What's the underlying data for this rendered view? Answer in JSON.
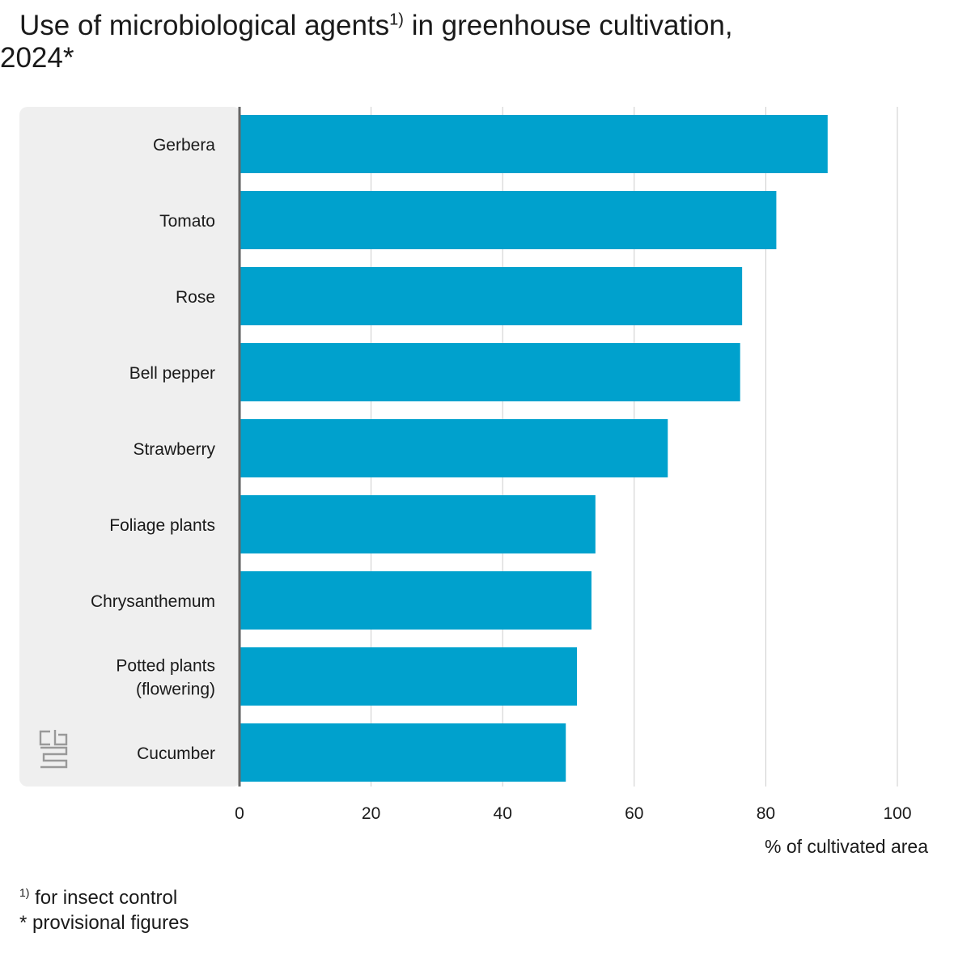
{
  "title": {
    "text_before_sup": "Use of microbiological agents",
    "sup": "1)",
    "text_after_sup": " in greenhouse cultivation,",
    "line2": "2024*"
  },
  "footnotes": {
    "note1_marker": "1)",
    "note1_text": " for insect control",
    "note2_text": "* provisional figures"
  },
  "logo": {
    "name": "cbs-logo"
  },
  "colors": {
    "bar": "#00a1cd",
    "panel": "#efefef",
    "grid": "#cccccc",
    "axis": "#666666"
  },
  "chart_data": {
    "type": "bar",
    "orientation": "horizontal",
    "categories": [
      "Gerbera",
      "Tomato",
      "Rose",
      "Bell pepper",
      "Strawberry",
      "Foliage plants",
      "Chrysanthemum",
      "Potted plants (flowering)",
      "Cucumber"
    ],
    "category_lines": [
      [
        "Gerbera"
      ],
      [
        "Tomato"
      ],
      [
        "Rose"
      ],
      [
        "Bell pepper"
      ],
      [
        "Strawberry"
      ],
      [
        "Foliage plants"
      ],
      [
        "Chrysanthemum"
      ],
      [
        "Potted plants",
        "(flowering)"
      ],
      [
        "Cucumber"
      ]
    ],
    "values": [
      89.4,
      81.6,
      76.4,
      76.1,
      65.1,
      54.1,
      53.5,
      51.3,
      49.6
    ],
    "xlabel": "% of cultivated area",
    "xlim": [
      0,
      100
    ],
    "xticks": [
      0,
      20,
      40,
      60,
      80,
      100
    ],
    "grid": "vertical"
  }
}
